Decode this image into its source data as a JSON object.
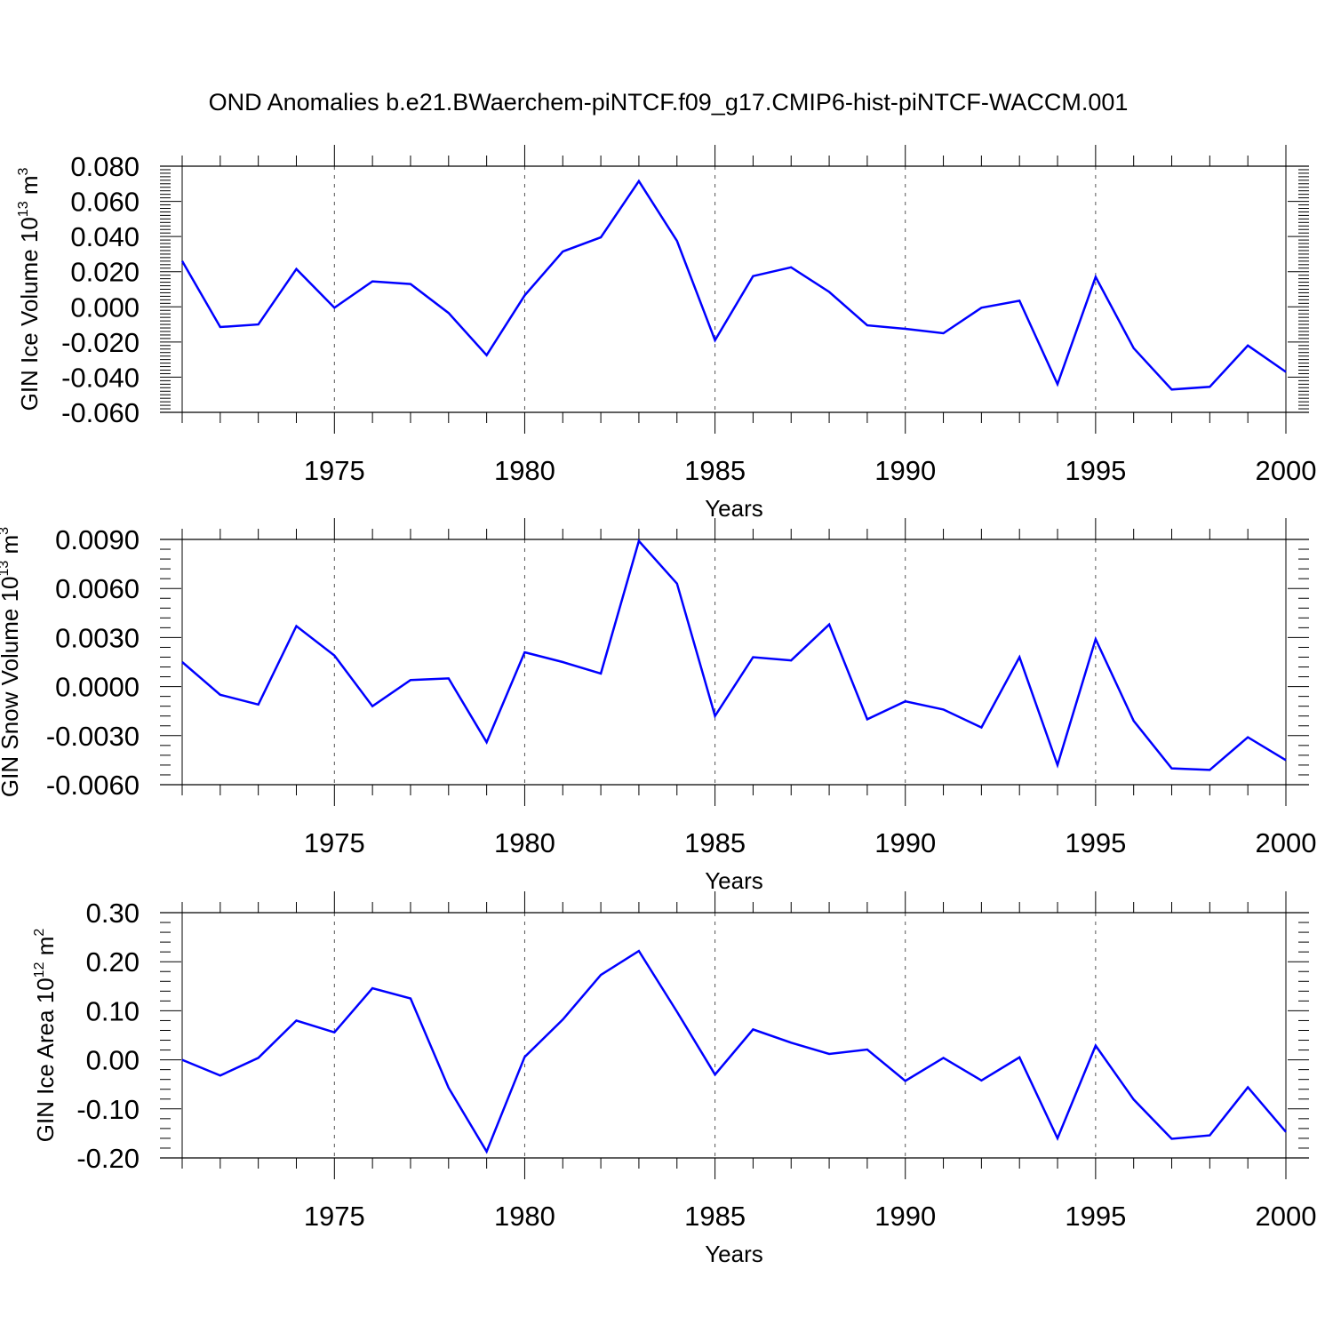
{
  "title": "OND Anomalies b.e21.BWaerchem-piNTCF.f09_g17.CMIP6-hist-piNTCF-WACCM.001",
  "colors": {
    "line": "#0000ff",
    "axes": "#000000",
    "grid": "#555555",
    "background": "#ffffff"
  },
  "chart_data": [
    {
      "type": "line",
      "xlabel": "Years",
      "ylabel": {
        "text": "GIN Ice Volume 10",
        "exp": "13",
        "unit": " m",
        "unit_exp": "3"
      },
      "xlim": [
        1971,
        2000
      ],
      "ylim": [
        -0.06,
        0.08
      ],
      "x_ticks": [
        "1975",
        "1980",
        "1985",
        "1990",
        "1995",
        "2000"
      ],
      "y_ticks": [
        "0.080",
        "0.060",
        "0.040",
        "0.020",
        "0.000",
        "-0.020",
        "-0.040",
        "-0.060"
      ],
      "grid": "vertical dashed at major x ticks",
      "x": [
        1971,
        1972,
        1973,
        1974,
        1975,
        1976,
        1977,
        1978,
        1979,
        1980,
        1981,
        1982,
        1983,
        1984,
        1985,
        1986,
        1987,
        1988,
        1989,
        1990,
        1991,
        1992,
        1993,
        1994,
        1995,
        1996,
        1997,
        1998,
        1999,
        2000
      ],
      "series": [
        {
          "values": [
            0.026,
            -0.0115,
            -0.01,
            0.0215,
            -0.0005,
            0.0145,
            0.013,
            -0.0035,
            -0.0275,
            0.0065,
            0.0315,
            0.0395,
            0.0715,
            0.0375,
            -0.019,
            0.0175,
            0.0225,
            0.0085,
            -0.0105,
            -0.0125,
            -0.015,
            -0.0005,
            0.0035,
            -0.044,
            0.017,
            -0.0235,
            -0.047,
            -0.0455,
            -0.022,
            -0.037
          ]
        }
      ]
    },
    {
      "type": "line",
      "xlabel": "Years",
      "ylabel": {
        "text": "GIN Snow Volume 10",
        "exp": "13",
        "unit": " m",
        "unit_exp": "3"
      },
      "xlim": [
        1971,
        2000
      ],
      "ylim": [
        -0.006,
        0.009
      ],
      "x_ticks": [
        "1975",
        "1980",
        "1985",
        "1990",
        "1995",
        "2000"
      ],
      "y_ticks": [
        "0.0090",
        "0.0060",
        "0.0030",
        "0.0000",
        "-0.0030",
        "-0.0060"
      ],
      "grid": "vertical dashed at major x ticks",
      "x": [
        1971,
        1972,
        1973,
        1974,
        1975,
        1976,
        1977,
        1978,
        1979,
        1980,
        1981,
        1982,
        1983,
        1984,
        1985,
        1986,
        1987,
        1988,
        1989,
        1990,
        1991,
        1992,
        1993,
        1994,
        1995,
        1996,
        1997,
        1998,
        1999,
        2000
      ],
      "series": [
        {
          "values": [
            0.0015,
            -0.0005,
            -0.0011,
            0.0037,
            0.0019,
            -0.0012,
            0.0004,
            0.0005,
            -0.0034,
            0.0021,
            0.0015,
            0.0008,
            0.0089,
            0.0063,
            -0.0018,
            0.0018,
            0.0016,
            0.0038,
            -0.002,
            -0.0009,
            -0.0014,
            -0.0025,
            0.0018,
            -0.0048,
            0.0029,
            -0.0021,
            -0.005,
            -0.0051,
            -0.0031,
            -0.0045
          ]
        }
      ]
    },
    {
      "type": "line",
      "xlabel": "Years",
      "ylabel": {
        "text": "GIN Ice Area 10",
        "exp": "12",
        "unit": " m",
        "unit_exp": "2"
      },
      "xlim": [
        1971,
        2000
      ],
      "ylim": [
        -0.2,
        0.3
      ],
      "x_ticks": [
        "1975",
        "1980",
        "1985",
        "1990",
        "1995",
        "2000"
      ],
      "y_ticks": [
        "0.30",
        "0.20",
        "0.10",
        "0.00",
        "-0.10",
        "-0.20"
      ],
      "grid": "vertical dashed at major x ticks",
      "x": [
        1971,
        1972,
        1973,
        1974,
        1975,
        1976,
        1977,
        1978,
        1979,
        1980,
        1981,
        1982,
        1983,
        1984,
        1985,
        1986,
        1987,
        1988,
        1989,
        1990,
        1991,
        1992,
        1993,
        1994,
        1995,
        1996,
        1997,
        1998,
        1999,
        2000
      ],
      "series": [
        {
          "values": [
            0.0,
            -0.032,
            0.004,
            0.08,
            0.056,
            0.146,
            0.125,
            -0.057,
            -0.187,
            0.006,
            0.082,
            0.173,
            0.222,
            0.098,
            -0.03,
            0.062,
            0.035,
            0.012,
            0.021,
            -0.043,
            0.004,
            -0.042,
            0.005,
            -0.16,
            0.029,
            -0.081,
            -0.161,
            -0.154,
            -0.056,
            -0.147
          ]
        }
      ]
    }
  ]
}
